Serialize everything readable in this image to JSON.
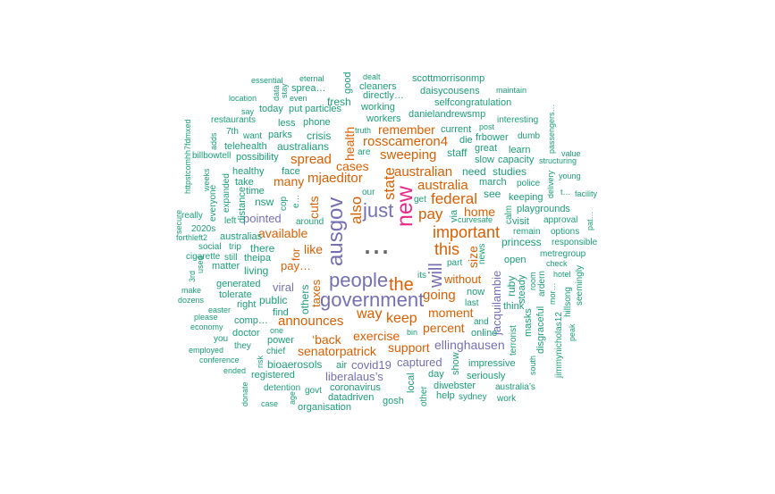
{
  "wordcloud": {
    "words": [
      {
        "text": "...",
        "color": "#666666"
      },
      {
        "text": "ausgov",
        "color": "#7570b3"
      },
      {
        "text": "new",
        "color": "#e7298a"
      },
      {
        "text": "people",
        "color": "#7570b3"
      },
      {
        "text": "government",
        "color": "#7570b3"
      },
      {
        "text": "the",
        "color": "#d95f02"
      },
      {
        "text": "just",
        "color": "#7570b3"
      },
      {
        "text": "will",
        "color": "#7570b3"
      },
      {
        "text": "this",
        "color": "#d95f02"
      },
      {
        "text": "important",
        "color": "#d95f02"
      },
      {
        "text": "federal",
        "color": "#d95f02"
      },
      {
        "text": "pay",
        "color": "#d95f02"
      },
      {
        "text": "also",
        "color": "#d95f02"
      },
      {
        "text": "state",
        "color": "#d95f02"
      },
      {
        "text": "keep",
        "color": "#d95f02"
      },
      {
        "text": "way",
        "color": "#d95f02"
      },
      {
        "text": "going",
        "color": "#d95f02"
      },
      {
        "text": "mjaeditor",
        "color": "#d95f02"
      },
      {
        "text": "australian",
        "color": "#d95f02"
      },
      {
        "text": "australia",
        "color": "#d95f02"
      },
      {
        "text": "home",
        "color": "#d95f02"
      },
      {
        "text": "sweeping",
        "color": "#d95f02"
      },
      {
        "text": "rosscameron4",
        "color": "#d95f02"
      },
      {
        "text": "cases",
        "color": "#d95f02"
      },
      {
        "text": "spread",
        "color": "#d95f02"
      },
      {
        "text": "many",
        "color": "#d95f02"
      },
      {
        "text": "available",
        "color": "#d95f02"
      },
      {
        "text": "like",
        "color": "#d95f02"
      },
      {
        "text": "announces",
        "color": "#d95f02"
      },
      {
        "text": "exercise",
        "color": "#d95f02"
      },
      {
        "text": "percent",
        "color": "#d95f02"
      },
      {
        "text": "moment",
        "color": "#d95f02"
      },
      {
        "text": "without",
        "color": "#d95f02"
      },
      {
        "text": "size",
        "color": "#d95f02"
      },
      {
        "text": "support",
        "color": "#d95f02"
      },
      {
        "text": "remember",
        "color": "#d95f02"
      },
      {
        "text": "‘back",
        "color": "#d95f02"
      },
      {
        "text": "senatorpatrick",
        "color": "#d95f02"
      },
      {
        "text": "pay…",
        "color": "#d95f02"
      },
      {
        "text": "cuts",
        "color": "#d95f02"
      },
      {
        "text": "taxes",
        "color": "#d95f02"
      },
      {
        "text": "health",
        "color": "#d95f02"
      },
      {
        "text": "for",
        "color": "#d95f02"
      },
      {
        "text": "jacquilambie",
        "color": "#7570b3"
      },
      {
        "text": "ellinghausen",
        "color": "#7570b3"
      },
      {
        "text": "liberalaus’s",
        "color": "#7570b3"
      },
      {
        "text": "covid19",
        "color": "#7570b3"
      },
      {
        "text": "captured",
        "color": "#7570b3"
      },
      {
        "text": "viral",
        "color": "#7570b3"
      },
      {
        "text": "pointed",
        "color": "#7570b3"
      },
      {
        "text": "australians",
        "color": "#1b9e77"
      },
      {
        "text": "crisis",
        "color": "#1b9e77"
      },
      {
        "text": "staff",
        "color": "#1b9e77"
      },
      {
        "text": "need",
        "color": "#1b9e77"
      },
      {
        "text": "studies",
        "color": "#1b9e77"
      },
      {
        "text": "princess",
        "color": "#1b9e77"
      },
      {
        "text": "there",
        "color": "#1b9e77"
      },
      {
        "text": "living",
        "color": "#1b9e77"
      },
      {
        "text": "public",
        "color": "#1b9e77"
      },
      {
        "text": "others",
        "color": "#1b9e77"
      },
      {
        "text": "face",
        "color": "#1b9e77"
      },
      {
        "text": "healthy",
        "color": "#1b9e77"
      },
      {
        "text": "telehealth",
        "color": "#1b9e77"
      },
      {
        "text": "possibility",
        "color": "#1b9e77"
      },
      {
        "text": "nsw",
        "color": "#1b9e77"
      },
      {
        "text": "around",
        "color": "#1b9e77"
      },
      {
        "text": "see",
        "color": "#1b9e77"
      },
      {
        "text": "march",
        "color": "#1b9e77"
      },
      {
        "text": "keeping",
        "color": "#1b9e77"
      },
      {
        "text": "police",
        "color": "#1b9e77"
      },
      {
        "text": "visit",
        "color": "#1b9e77"
      },
      {
        "text": "remain",
        "color": "#1b9e77"
      },
      {
        "text": "open",
        "color": "#1b9e77"
      },
      {
        "text": "ruby",
        "color": "#1b9e77"
      },
      {
        "text": "steady",
        "color": "#1b9e77"
      },
      {
        "text": "think",
        "color": "#1b9e77"
      },
      {
        "text": "masks",
        "color": "#1b9e77"
      },
      {
        "text": "terrorist",
        "color": "#1b9e77"
      },
      {
        "text": "disgraceful",
        "color": "#1b9e77"
      },
      {
        "text": "ardern",
        "color": "#1b9e77"
      },
      {
        "text": "online",
        "color": "#1b9e77"
      },
      {
        "text": "now",
        "color": "#1b9e77"
      },
      {
        "text": "last",
        "color": "#1b9e77"
      },
      {
        "text": "impressive",
        "color": "#1b9e77"
      },
      {
        "text": "seriously",
        "color": "#1b9e77"
      },
      {
        "text": "coronavirus",
        "color": "#1b9e77"
      },
      {
        "text": "datadriven",
        "color": "#1b9e77"
      },
      {
        "text": "gosh",
        "color": "#1b9e77"
      },
      {
        "text": "help",
        "color": "#1b9e77"
      },
      {
        "text": "sydney",
        "color": "#1b9e77"
      },
      {
        "text": "diwebster",
        "color": "#1b9e77"
      },
      {
        "text": "day",
        "color": "#1b9e77"
      },
      {
        "text": "show",
        "color": "#1b9e77"
      },
      {
        "text": "local",
        "color": "#1b9e77"
      },
      {
        "text": "bioaerosols",
        "color": "#1b9e77"
      },
      {
        "text": "registered",
        "color": "#1b9e77"
      },
      {
        "text": "air",
        "color": "#1b9e77"
      },
      {
        "text": "govt",
        "color": "#1b9e77"
      },
      {
        "text": "detention",
        "color": "#1b9e77"
      },
      {
        "text": "power",
        "color": "#1b9e77"
      },
      {
        "text": "chief",
        "color": "#1b9e77"
      },
      {
        "text": "find",
        "color": "#1b9e77"
      },
      {
        "text": "right",
        "color": "#1b9e77"
      },
      {
        "text": "doctor",
        "color": "#1b9e77"
      },
      {
        "text": "comp…",
        "color": "#1b9e77"
      },
      {
        "text": "generated",
        "color": "#1b9e77"
      },
      {
        "text": "tolerate",
        "color": "#1b9e77"
      },
      {
        "text": "matter",
        "color": "#1b9e77"
      },
      {
        "text": "australias",
        "color": "#1b9e77"
      },
      {
        "text": "trip",
        "color": "#1b9e77"
      },
      {
        "text": "theipa",
        "color": "#1b9e77"
      },
      {
        "text": "still",
        "color": "#1b9e77"
      },
      {
        "text": "social",
        "color": "#1b9e77"
      },
      {
        "text": "cigarette",
        "color": "#1b9e77"
      },
      {
        "text": "left",
        "color": "#1b9e77"
      },
      {
        "text": "distance",
        "color": "#1b9e77"
      },
      {
        "text": "really",
        "color": "#1b9e77"
      },
      {
        "text": "2020s",
        "color": "#1b9e77"
      },
      {
        "text": "forthleft2",
        "color": "#1b9e77"
      },
      {
        "text": "time",
        "color": "#1b9e77"
      },
      {
        "text": "take",
        "color": "#1b9e77"
      },
      {
        "text": "everyone",
        "color": "#1b9e77"
      },
      {
        "text": "expanded",
        "color": "#1b9e77"
      },
      {
        "text": "weeks",
        "color": "#1b9e77"
      },
      {
        "text": "billbowtell",
        "color": "#1b9e77"
      },
      {
        "text": "httpstcomhh7fdmxed",
        "color": "#1b9e77"
      },
      {
        "text": "adds",
        "color": "#1b9e77"
      },
      {
        "text": "7th",
        "color": "#1b9e77"
      },
      {
        "text": "want",
        "color": "#1b9e77"
      },
      {
        "text": "parks",
        "color": "#1b9e77"
      },
      {
        "text": "less",
        "color": "#1b9e77"
      },
      {
        "text": "phone",
        "color": "#1b9e77"
      },
      {
        "text": "restaurants",
        "color": "#1b9e77"
      },
      {
        "text": "say",
        "color": "#1b9e77"
      },
      {
        "text": "today",
        "color": "#1b9e77"
      },
      {
        "text": "put",
        "color": "#1b9e77"
      },
      {
        "text": "particles",
        "color": "#1b9e77"
      },
      {
        "text": "location",
        "color": "#1b9e77"
      },
      {
        "text": "essential",
        "color": "#1b9e77"
      },
      {
        "text": "data",
        "color": "#1b9e77"
      },
      {
        "text": "stay",
        "color": "#1b9e77"
      },
      {
        "text": "even",
        "color": "#1b9e77"
      },
      {
        "text": "sprea…",
        "color": "#1b9e77"
      },
      {
        "text": "eternal",
        "color": "#1b9e77"
      },
      {
        "text": "fresh",
        "color": "#1b9e77"
      },
      {
        "text": "good",
        "color": "#1b9e77"
      },
      {
        "text": "dealt",
        "color": "#1b9e77"
      },
      {
        "text": "cleaners",
        "color": "#1b9e77"
      },
      {
        "text": "directly…",
        "color": "#1b9e77"
      },
      {
        "text": "working",
        "color": "#1b9e77"
      },
      {
        "text": "workers",
        "color": "#1b9e77"
      },
      {
        "text": "truth",
        "color": "#1b9e77"
      },
      {
        "text": "our",
        "color": "#1b9e77"
      },
      {
        "text": "are",
        "color": "#1b9e77"
      },
      {
        "text": "scottmorrisonmp",
        "color": "#1b9e77"
      },
      {
        "text": "daisycousens",
        "color": "#1b9e77"
      },
      {
        "text": "selfcongratulation",
        "color": "#1b9e77"
      },
      {
        "text": "danielandrewsmp",
        "color": "#1b9e77"
      },
      {
        "text": "maintain",
        "color": "#1b9e77"
      },
      {
        "text": "interesting",
        "color": "#1b9e77"
      },
      {
        "text": "current",
        "color": "#1b9e77"
      },
      {
        "text": "post",
        "color": "#1b9e77"
      },
      {
        "text": "frbower",
        "color": "#1b9e77"
      },
      {
        "text": "dumb",
        "color": "#1b9e77"
      },
      {
        "text": "die",
        "color": "#1b9e77"
      },
      {
        "text": "great",
        "color": "#1b9e77"
      },
      {
        "text": "learn",
        "color": "#1b9e77"
      },
      {
        "text": "slow",
        "color": "#1b9e77"
      },
      {
        "text": "capacity",
        "color": "#1b9e77"
      },
      {
        "text": "structuring",
        "color": "#1b9e77"
      },
      {
        "text": "value",
        "color": "#1b9e77"
      },
      {
        "text": "young",
        "color": "#1b9e77"
      },
      {
        "text": "passengers…",
        "color": "#1b9e77"
      },
      {
        "text": "delivery",
        "color": "#1b9e77"
      },
      {
        "text": "t…",
        "color": "#1b9e77"
      },
      {
        "text": "facility",
        "color": "#1b9e77"
      },
      {
        "text": "playgrounds",
        "color": "#1b9e77"
      },
      {
        "text": "approval",
        "color": "#1b9e77"
      },
      {
        "text": "options",
        "color": "#1b9e77"
      },
      {
        "text": "responsible",
        "color": "#1b9e77"
      },
      {
        "text": "metregroup",
        "color": "#1b9e77"
      },
      {
        "text": "check",
        "color": "#1b9e77"
      },
      {
        "text": "hotel",
        "color": "#1b9e77"
      },
      {
        "text": "part",
        "color": "#1b9e77"
      },
      {
        "text": "curvesafe",
        "color": "#1b9e77"
      },
      {
        "text": "calm",
        "color": "#1b9e77"
      },
      {
        "text": "via",
        "color": "#1b9e77"
      },
      {
        "text": "get",
        "color": "#1b9e77"
      },
      {
        "text": "its",
        "color": "#1b9e77"
      },
      {
        "text": "news",
        "color": "#1b9e77"
      },
      {
        "text": "and",
        "color": "#1b9e77"
      },
      {
        "text": "room",
        "color": "#1b9e77"
      },
      {
        "text": "mor…",
        "color": "#1b9e77"
      },
      {
        "text": "hillsong",
        "color": "#1b9e77"
      },
      {
        "text": "seemingly",
        "color": "#1b9e77"
      },
      {
        "text": "peak",
        "color": "#1b9e77"
      },
      {
        "text": "jimmynicholas12",
        "color": "#1b9e77"
      },
      {
        "text": "south",
        "color": "#1b9e77"
      },
      {
        "text": "australia’s",
        "color": "#1b9e77"
      },
      {
        "text": "work",
        "color": "#1b9e77"
      },
      {
        "text": "bin",
        "color": "#1b9e77"
      },
      {
        "text": "one",
        "color": "#1b9e77"
      },
      {
        "text": "risk",
        "color": "#1b9e77"
      },
      {
        "text": "you",
        "color": "#1b9e77"
      },
      {
        "text": "they",
        "color": "#1b9e77"
      },
      {
        "text": "economy",
        "color": "#1b9e77"
      },
      {
        "text": "please",
        "color": "#1b9e77"
      },
      {
        "text": "easter",
        "color": "#1b9e77"
      },
      {
        "text": "make",
        "color": "#1b9e77"
      },
      {
        "text": "dozens",
        "color": "#1b9e77"
      },
      {
        "text": "employed",
        "color": "#1b9e77"
      },
      {
        "text": "conference",
        "color": "#1b9e77"
      },
      {
        "text": "ended",
        "color": "#1b9e77"
      },
      {
        "text": "used",
        "color": "#1b9e77"
      },
      {
        "text": "3rd",
        "color": "#1b9e77"
      },
      {
        "text": "secure",
        "color": "#1b9e77"
      },
      {
        "text": "cop",
        "color": "#1b9e77"
      },
      {
        "text": "e…",
        "color": "#1b9e77"
      },
      {
        "text": "pat…",
        "color": "#1b9e77"
      },
      {
        "text": "case",
        "color": "#1b9e77"
      },
      {
        "text": "organisation",
        "color": "#1b9e77"
      },
      {
        "text": "age",
        "color": "#1b9e77"
      },
      {
        "text": "other",
        "color": "#1b9e77"
      },
      {
        "text": "donate",
        "color": "#1b9e77"
      }
    ]
  }
}
